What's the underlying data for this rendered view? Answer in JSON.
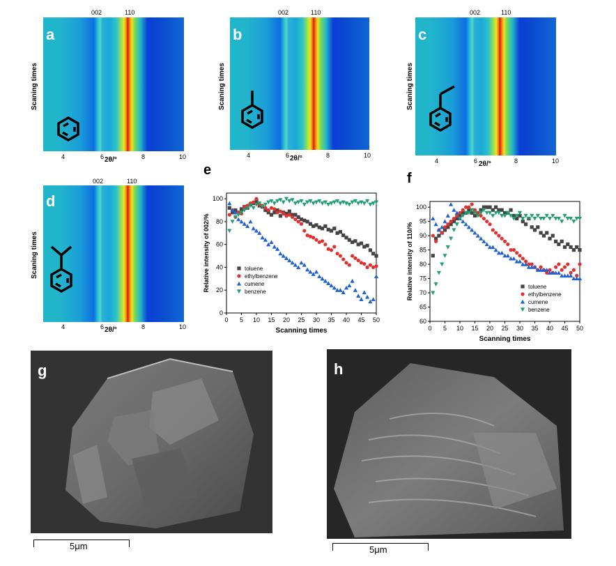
{
  "maps": [
    {
      "label": "a",
      "molecule": "benzene-icon"
    },
    {
      "label": "b",
      "molecule": "toluene-icon"
    },
    {
      "label": "c",
      "molecule": "ethylbenzene-icon"
    },
    {
      "label": "d",
      "molecule": "cumene-icon"
    }
  ],
  "map_axis": {
    "ylabel": "Scaning times",
    "xlabel": "2θ/°",
    "ticks": [
      "4",
      "6",
      "8",
      "10"
    ],
    "peaks": [
      "002",
      "110"
    ]
  },
  "charts_title_labels": {
    "e": "e",
    "f": "f"
  },
  "chart_data": [
    {
      "type": "scatter",
      "title": "e",
      "xlabel": "Scanning times",
      "ylabel": "Relative intensity of 002/%",
      "xlim": [
        0,
        50
      ],
      "ylim": [
        0,
        105
      ],
      "xticks": [
        "0",
        "5",
        "10",
        "15",
        "20",
        "25",
        "30",
        "35",
        "40",
        "45",
        "50"
      ],
      "yticks": [
        "0",
        "20",
        "40",
        "60",
        "80",
        "100"
      ],
      "legend_position": "lower-left",
      "series": [
        {
          "name": "toluene",
          "marker": "square",
          "color": "#444444",
          "x": [
            1,
            2,
            3,
            4,
            5,
            6,
            7,
            8,
            9,
            10,
            11,
            12,
            13,
            14,
            15,
            16,
            17,
            18,
            19,
            20,
            21,
            22,
            23,
            24,
            25,
            26,
            27,
            28,
            29,
            30,
            31,
            32,
            33,
            34,
            35,
            36,
            37,
            38,
            39,
            40,
            41,
            42,
            43,
            44,
            45,
            46,
            47,
            48,
            49,
            50
          ],
          "y": [
            92,
            88,
            90,
            88,
            91,
            93,
            92,
            95,
            96,
            98,
            94,
            93,
            90,
            88,
            86,
            88,
            90,
            85,
            88,
            87,
            89,
            86,
            86,
            84,
            82,
            81,
            80,
            78,
            76,
            77,
            75,
            74,
            76,
            73,
            72,
            74,
            70,
            71,
            68,
            66,
            64,
            62,
            63,
            60,
            61,
            58,
            59,
            55,
            52,
            50
          ]
        },
        {
          "name": "ethylbenzene",
          "marker": "circle",
          "color": "#e03030",
          "x": [
            1,
            2,
            3,
            4,
            5,
            6,
            7,
            8,
            9,
            10,
            11,
            12,
            13,
            14,
            15,
            16,
            17,
            18,
            19,
            20,
            21,
            22,
            23,
            24,
            25,
            26,
            27,
            28,
            29,
            30,
            31,
            32,
            33,
            34,
            35,
            36,
            37,
            38,
            39,
            40,
            41,
            42,
            43,
            44,
            45,
            46,
            47,
            48,
            49,
            50
          ],
          "y": [
            86,
            90,
            84,
            88,
            87,
            93,
            94,
            96,
            97,
            100,
            95,
            94,
            92,
            90,
            92,
            91,
            88,
            89,
            87,
            85,
            86,
            84,
            82,
            80,
            78,
            72,
            68,
            67,
            66,
            64,
            62,
            63,
            60,
            56,
            55,
            58,
            52,
            50,
            47,
            44,
            42,
            50,
            48,
            46,
            44,
            43,
            40,
            42,
            40,
            41
          ]
        },
        {
          "name": "cumene",
          "marker": "triangle-up",
          "color": "#2060d0",
          "x": [
            1,
            2,
            3,
            4,
            5,
            6,
            7,
            8,
            9,
            10,
            11,
            12,
            13,
            14,
            15,
            16,
            17,
            18,
            19,
            20,
            21,
            22,
            23,
            24,
            25,
            26,
            27,
            28,
            29,
            30,
            31,
            32,
            33,
            34,
            35,
            36,
            37,
            38,
            39,
            40,
            41,
            42,
            43,
            44,
            45,
            46,
            47,
            48,
            49,
            50
          ],
          "y": [
            96,
            90,
            88,
            82,
            80,
            78,
            76,
            80,
            74,
            72,
            70,
            66,
            64,
            60,
            62,
            58,
            56,
            52,
            50,
            48,
            46,
            44,
            42,
            40,
            44,
            42,
            38,
            36,
            34,
            36,
            32,
            30,
            28,
            26,
            24,
            22,
            20,
            20,
            18,
            22,
            24,
            28,
            20,
            15,
            12,
            18,
            14,
            10,
            12,
            32
          ]
        },
        {
          "name": "benzene",
          "marker": "triangle-down",
          "color": "#20a070",
          "x": [
            1,
            2,
            3,
            4,
            5,
            6,
            7,
            8,
            9,
            10,
            11,
            12,
            13,
            14,
            15,
            16,
            17,
            18,
            19,
            20,
            21,
            22,
            23,
            24,
            25,
            26,
            27,
            28,
            29,
            30,
            31,
            32,
            33,
            34,
            35,
            36,
            37,
            38,
            39,
            40,
            41,
            42,
            43,
            44,
            45,
            46,
            47,
            48,
            49,
            50
          ],
          "y": [
            72,
            80,
            84,
            86,
            88,
            90,
            92,
            94,
            92,
            95,
            96,
            93,
            95,
            97,
            98,
            96,
            98,
            99,
            97,
            100,
            98,
            99,
            96,
            97,
            98,
            95,
            97,
            98,
            96,
            97,
            98,
            96,
            97,
            95,
            96,
            97,
            98,
            96,
            97,
            96,
            95,
            97,
            98,
            96,
            97,
            96,
            98,
            95,
            96,
            97
          ]
        }
      ]
    },
    {
      "type": "scatter",
      "title": "f",
      "xlabel": "Scanning times",
      "ylabel": "Relative intensity of 110/%",
      "xlim": [
        0,
        50
      ],
      "ylim": [
        60,
        102
      ],
      "xticks": [
        "0",
        "5",
        "10",
        "15",
        "20",
        "25",
        "30",
        "35",
        "40",
        "45",
        "50"
      ],
      "yticks": [
        "60",
        "65",
        "70",
        "75",
        "80",
        "85",
        "90",
        "95",
        "100"
      ],
      "legend_position": "lower-right",
      "series": [
        {
          "name": "toluene",
          "marker": "square",
          "color": "#444444",
          "x": [
            1,
            2,
            3,
            4,
            5,
            6,
            7,
            8,
            9,
            10,
            11,
            12,
            13,
            14,
            15,
            16,
            17,
            18,
            19,
            20,
            21,
            22,
            23,
            24,
            25,
            26,
            27,
            28,
            29,
            30,
            31,
            32,
            33,
            34,
            35,
            36,
            37,
            38,
            39,
            40,
            41,
            42,
            43,
            44,
            45,
            46,
            47,
            48,
            49,
            50
          ],
          "y": [
            83,
            89,
            90,
            91,
            92,
            93,
            94,
            95,
            96,
            97,
            98,
            98,
            99,
            98,
            97,
            98,
            99,
            100,
            100,
            100,
            99,
            100,
            99,
            99,
            98,
            98,
            99,
            97,
            96,
            97,
            95,
            94,
            96,
            93,
            92,
            93,
            91,
            90,
            91,
            89,
            90,
            88,
            87,
            88,
            86,
            87,
            86,
            85,
            86,
            85
          ]
        },
        {
          "name": "ethylbenzene",
          "marker": "circle",
          "color": "#e03030",
          "x": [
            1,
            2,
            3,
            4,
            5,
            6,
            7,
            8,
            9,
            10,
            11,
            12,
            13,
            14,
            15,
            16,
            17,
            18,
            19,
            20,
            21,
            22,
            23,
            24,
            25,
            26,
            27,
            28,
            29,
            30,
            31,
            32,
            33,
            34,
            35,
            36,
            37,
            38,
            39,
            40,
            41,
            42,
            43,
            44,
            45,
            46,
            47,
            48,
            49,
            50
          ],
          "y": [
            90,
            88,
            92,
            91,
            93,
            94,
            95,
            96,
            97,
            98,
            99,
            100,
            100,
            101,
            99,
            98,
            97,
            96,
            95,
            94,
            92,
            91,
            90,
            89,
            88,
            87,
            85,
            85,
            84,
            83,
            82,
            81,
            80,
            80,
            79,
            78,
            79,
            78,
            77,
            78,
            77,
            79,
            80,
            78,
            79,
            80,
            77,
            78,
            76,
            80
          ]
        },
        {
          "name": "cumene",
          "marker": "triangle-up",
          "color": "#2060d0",
          "x": [
            1,
            2,
            3,
            4,
            5,
            6,
            7,
            8,
            9,
            10,
            11,
            12,
            13,
            14,
            15,
            16,
            17,
            18,
            19,
            20,
            21,
            22,
            23,
            24,
            25,
            26,
            27,
            28,
            29,
            30,
            31,
            32,
            33,
            34,
            35,
            36,
            37,
            38,
            39,
            40,
            41,
            42,
            43,
            44,
            45,
            46,
            47,
            48,
            49,
            50
          ],
          "y": [
            96,
            94,
            92,
            93,
            95,
            97,
            101,
            99,
            98,
            96,
            95,
            94,
            93,
            92,
            91,
            90,
            89,
            88,
            87,
            86,
            86,
            85,
            84,
            84,
            83,
            83,
            82,
            82,
            81,
            81,
            80,
            80,
            79,
            79,
            79,
            78,
            78,
            78,
            78,
            77,
            77,
            77,
            77,
            76,
            76,
            76,
            76,
            75,
            75,
            75
          ]
        },
        {
          "name": "benzene",
          "marker": "triangle-down",
          "color": "#20a070",
          "x": [
            1,
            2,
            3,
            4,
            5,
            6,
            7,
            8,
            9,
            10,
            11,
            12,
            13,
            14,
            15,
            16,
            17,
            18,
            19,
            20,
            21,
            22,
            23,
            24,
            25,
            26,
            27,
            28,
            29,
            30,
            31,
            32,
            33,
            34,
            35,
            36,
            37,
            38,
            39,
            40,
            41,
            42,
            43,
            44,
            45,
            46,
            47,
            48,
            49,
            50
          ],
          "y": [
            70,
            73,
            77,
            80,
            83,
            86,
            89,
            92,
            94,
            96,
            97,
            98,
            98,
            99,
            98,
            97,
            98,
            99,
            98,
            98,
            97,
            98,
            98,
            97,
            97,
            98,
            97,
            96,
            97,
            98,
            96,
            97,
            96,
            97,
            96,
            97,
            96,
            96,
            97,
            96,
            97,
            96,
            96,
            95,
            97,
            96,
            96,
            95,
            96,
            96
          ]
        }
      ]
    }
  ],
  "sem": [
    {
      "label": "g",
      "scale_label": "5μm"
    },
    {
      "label": "h",
      "scale_label": "5μm"
    }
  ]
}
